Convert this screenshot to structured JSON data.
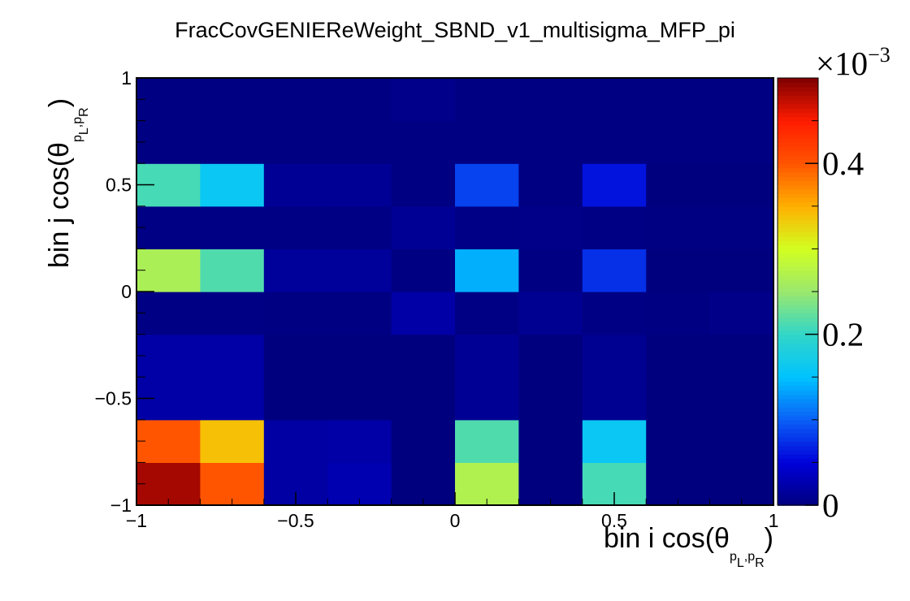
{
  "chart_data": {
    "type": "heatmap",
    "title": "FracCovGENIEReWeight_SBND_v1_multisigma_MFP_pi",
    "xlabel": {
      "main": "bin i cos(θ",
      "sub": "p⃗L,p⃗R",
      "sub_main_1": "p",
      "sub_script_1": "L",
      "sub_main_2": "p",
      "sub_script_2": "R",
      "close": ")"
    },
    "ylabel": {
      "main": "bin j cos(θ",
      "sub_main_1": "p",
      "sub_script_1": "L",
      "sub_main_2": "p",
      "sub_script_2": "R",
      "close": ")"
    },
    "x_edges": [
      -1.0,
      -0.8,
      -0.6,
      -0.4,
      -0.2,
      0.0,
      0.2,
      0.4,
      0.6,
      0.8,
      1.0
    ],
    "y_edges": [
      -1.0,
      -0.8,
      -0.6,
      -0.4,
      -0.2,
      0.0,
      0.2,
      0.4,
      0.6,
      0.8,
      1.0
    ],
    "xlim": [
      -1,
      1
    ],
    "ylim": [
      -1,
      1
    ],
    "x_ticks": [
      {
        "value": -1,
        "label": "−1"
      },
      {
        "value": -0.5,
        "label": "−0.5"
      },
      {
        "value": 0,
        "label": "0"
      },
      {
        "value": 0.5,
        "label": "0.5"
      },
      {
        "value": 1,
        "label": "1"
      }
    ],
    "y_ticks": [
      {
        "value": -1,
        "label": "−1"
      },
      {
        "value": -0.5,
        "label": "−0.5"
      },
      {
        "value": 0,
        "label": "0"
      },
      {
        "value": 0.5,
        "label": "0.5"
      },
      {
        "value": 1,
        "label": "1"
      }
    ],
    "values_rows_bottom_to_top": [
      [
        0.485,
        0.4,
        0.02,
        0.028,
        0.0,
        0.27,
        0.0,
        0.21,
        0.0,
        0.0
      ],
      [
        0.4,
        0.34,
        0.02,
        0.022,
        0.0,
        0.215,
        0.0,
        0.16,
        0.0,
        0.0
      ],
      [
        0.022,
        0.022,
        0.0,
        0.0,
        0.0,
        0.012,
        0.0,
        0.01,
        0.0,
        0.0
      ],
      [
        0.022,
        0.022,
        0.0,
        0.0,
        0.0,
        0.012,
        0.0,
        0.01,
        0.0,
        0.0
      ],
      [
        0.003,
        0.003,
        0.002,
        0.002,
        0.022,
        0.003,
        0.01,
        0.003,
        0.002,
        0.005
      ],
      [
        0.265,
        0.215,
        0.016,
        0.016,
        0.002,
        0.14,
        0.002,
        0.075,
        0.0,
        0.0
      ],
      [
        0.003,
        0.003,
        0.003,
        0.003,
        0.012,
        0.004,
        0.005,
        0.003,
        0.002,
        0.002
      ],
      [
        0.21,
        0.16,
        0.012,
        0.012,
        0.002,
        0.085,
        0.002,
        0.06,
        0.0,
        0.0
      ],
      [
        0.002,
        0.002,
        0.002,
        0.002,
        0.002,
        0.002,
        0.002,
        0.002,
        0.002,
        0.002
      ],
      [
        0.002,
        0.002,
        0.002,
        0.002,
        0.006,
        0.002,
        0.002,
        0.002,
        0.002,
        0.002
      ]
    ],
    "value_scale": "x10^-3",
    "z_range": [
      0,
      0.5
    ],
    "colorbar": {
      "ticks": [
        {
          "value": 0,
          "label": "0"
        },
        {
          "value": 0.2,
          "label": "0.2"
        },
        {
          "value": 0.4,
          "label": "0.4"
        }
      ],
      "multiplier_base": "×10",
      "multiplier_exp": "−3"
    },
    "colormap": [
      "#00007f",
      "#0000d8",
      "#0a5ff7",
      "#00c3ff",
      "#31d6c8",
      "#9ae86e",
      "#d2ff21",
      "#ffb000",
      "#ff5500",
      "#ff1c00",
      "#7f0000"
    ],
    "grid": false,
    "legend": "none"
  }
}
